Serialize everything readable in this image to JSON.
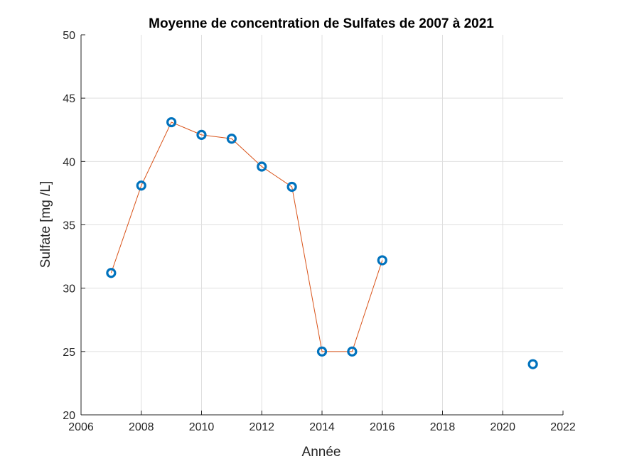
{
  "chart_data": {
    "type": "line",
    "title": "Moyenne de concentration de Sulfates de 2007 à 2021",
    "xlabel": "Année",
    "ylabel": "Sulfate [mg /L]",
    "xlim": [
      2006,
      2022
    ],
    "ylim": [
      20,
      50
    ],
    "xticks": [
      2006,
      2008,
      2010,
      2012,
      2014,
      2016,
      2018,
      2020,
      2022
    ],
    "yticks": [
      20,
      25,
      30,
      35,
      40,
      45,
      50
    ],
    "xtick_labels": [
      "2006",
      "2008",
      "2010",
      "2012",
      "2014",
      "2016",
      "2018",
      "2020",
      "2022"
    ],
    "ytick_labels": [
      "20",
      "25",
      "30",
      "35",
      "40",
      "45",
      "50"
    ],
    "grid": true,
    "line_series": {
      "color": "#D95319",
      "x": [
        2007,
        2008,
        2009,
        2010,
        2011,
        2012,
        2013,
        2014,
        2015,
        2016
      ],
      "y": [
        31.2,
        38.1,
        43.1,
        42.1,
        41.8,
        39.6,
        38.0,
        25.0,
        25.0,
        32.2
      ]
    },
    "marker_series": {
      "color": "#0072BD",
      "marker": "circle",
      "x": [
        2007,
        2008,
        2009,
        2010,
        2011,
        2012,
        2013,
        2014,
        2015,
        2016,
        2021
      ],
      "y": [
        31.2,
        38.1,
        43.1,
        42.1,
        41.8,
        39.6,
        38.0,
        25.0,
        25.0,
        32.2,
        24.0
      ]
    }
  }
}
